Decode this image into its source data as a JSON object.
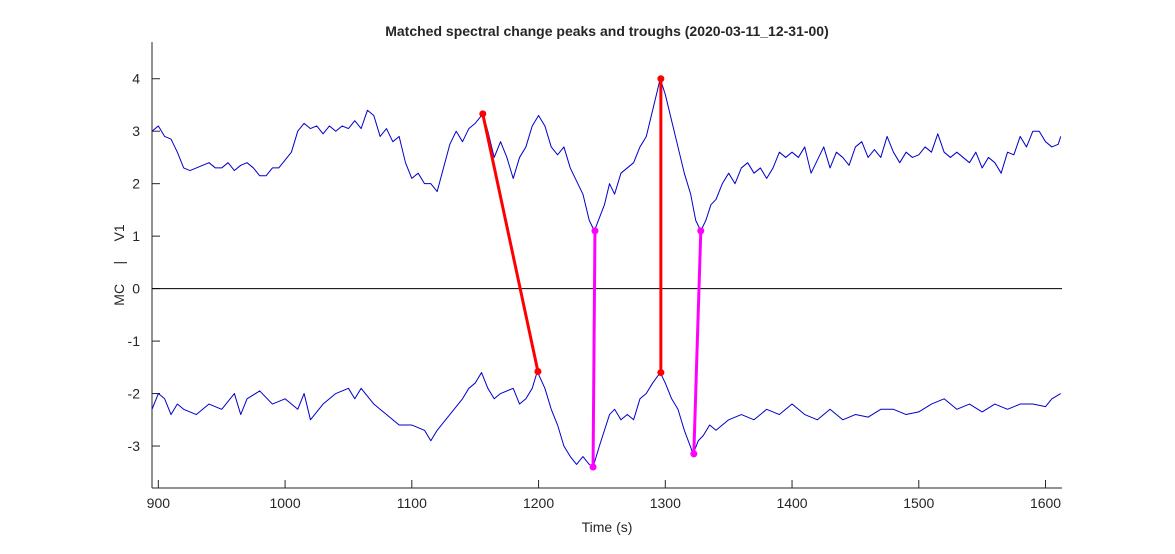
{
  "chart_data": {
    "type": "line",
    "title": "Matched spectral change peaks and troughs (2020-03-11_12-31-00)",
    "xlabel": "Time (s)",
    "ylabel": "MC     |     V1",
    "xlim": [
      895,
      1613
    ],
    "ylim": [
      -3.8,
      4.7
    ],
    "xticks": [
      900,
      1000,
      1100,
      1200,
      1300,
      1400,
      1500,
      1600
    ],
    "yticks": [
      -3,
      -2,
      -1,
      0,
      1,
      2,
      3,
      4
    ],
    "reference_line": 0,
    "series": [
      {
        "color": "#0000cc",
        "x": [
          895,
          900,
          905,
          910,
          915,
          920,
          925,
          930,
          940,
          945,
          950,
          955,
          960,
          965,
          970,
          975,
          980,
          985,
          990,
          995,
          1000,
          1005,
          1010,
          1015,
          1020,
          1025,
          1030,
          1035,
          1040,
          1045,
          1050,
          1055,
          1060,
          1065,
          1070,
          1075,
          1080,
          1085,
          1090,
          1095,
          1100,
          1105,
          1110,
          1115,
          1120,
          1125,
          1130,
          1135,
          1140,
          1145,
          1150,
          1156,
          1160,
          1165,
          1170,
          1175,
          1180,
          1185,
          1190,
          1195,
          1200,
          1205,
          1210,
          1215,
          1220,
          1225,
          1230,
          1235,
          1240,
          1244,
          1248,
          1252,
          1256,
          1260,
          1265,
          1270,
          1275,
          1280,
          1285,
          1290,
          1296,
          1300,
          1305,
          1310,
          1315,
          1320,
          1324,
          1328,
          1332,
          1336,
          1340,
          1345,
          1350,
          1355,
          1360,
          1365,
          1370,
          1375,
          1380,
          1385,
          1390,
          1395,
          1400,
          1405,
          1410,
          1415,
          1420,
          1425,
          1430,
          1435,
          1440,
          1445,
          1450,
          1455,
          1460,
          1465,
          1470,
          1475,
          1480,
          1485,
          1490,
          1495,
          1500,
          1505,
          1510,
          1515,
          1520,
          1525,
          1530,
          1535,
          1540,
          1545,
          1550,
          1555,
          1560,
          1565,
          1570,
          1575,
          1580,
          1585,
          1590,
          1595,
          1600,
          1605,
          1610,
          1612
        ],
        "values": [
          3.0,
          3.1,
          2.9,
          2.85,
          2.6,
          2.3,
          2.25,
          2.3,
          2.4,
          2.3,
          2.3,
          2.4,
          2.25,
          2.35,
          2.4,
          2.3,
          2.15,
          2.15,
          2.3,
          2.3,
          2.45,
          2.6,
          3.0,
          3.15,
          3.05,
          3.1,
          2.95,
          3.1,
          3.0,
          3.1,
          3.05,
          3.2,
          3.05,
          3.4,
          3.3,
          2.9,
          3.05,
          2.8,
          2.9,
          2.4,
          2.1,
          2.2,
          2.0,
          2.0,
          1.85,
          2.3,
          2.75,
          3.0,
          2.8,
          3.05,
          3.15,
          3.33,
          3.0,
          2.5,
          2.8,
          2.5,
          2.1,
          2.5,
          2.7,
          3.1,
          3.3,
          3.1,
          2.7,
          2.55,
          2.7,
          2.3,
          2.05,
          1.8,
          1.3,
          1.1,
          1.35,
          1.6,
          2.0,
          1.8,
          2.2,
          2.3,
          2.4,
          2.7,
          2.9,
          3.4,
          4.0,
          3.7,
          3.2,
          2.7,
          2.2,
          1.8,
          1.3,
          1.1,
          1.3,
          1.6,
          1.7,
          2.0,
          2.2,
          2.0,
          2.3,
          2.4,
          2.2,
          2.3,
          2.1,
          2.3,
          2.6,
          2.5,
          2.6,
          2.5,
          2.7,
          2.2,
          2.45,
          2.7,
          2.3,
          2.6,
          2.5,
          2.35,
          2.7,
          2.8,
          2.5,
          2.65,
          2.5,
          2.9,
          2.6,
          2.4,
          2.6,
          2.5,
          2.55,
          2.7,
          2.6,
          2.95,
          2.6,
          2.5,
          2.6,
          2.5,
          2.4,
          2.6,
          2.3,
          2.5,
          2.4,
          2.2,
          2.6,
          2.55,
          2.9,
          2.7,
          3.0,
          3.0,
          2.8,
          2.7,
          2.75,
          2.9
        ]
      },
      {
        "color": "#0000cc",
        "x": [
          895,
          900,
          905,
          910,
          915,
          920,
          930,
          940,
          950,
          960,
          965,
          970,
          980,
          990,
          1000,
          1010,
          1015,
          1020,
          1030,
          1040,
          1050,
          1055,
          1060,
          1070,
          1080,
          1090,
          1100,
          1110,
          1115,
          1120,
          1130,
          1140,
          1145,
          1150,
          1155,
          1160,
          1165,
          1170,
          1180,
          1185,
          1190,
          1195,
          1199,
          1205,
          1210,
          1215,
          1220,
          1225,
          1230,
          1235,
          1240,
          1243,
          1248,
          1252,
          1256,
          1260,
          1265,
          1270,
          1275,
          1280,
          1285,
          1290,
          1296,
          1300,
          1305,
          1310,
          1315,
          1322,
          1326,
          1330,
          1335,
          1340,
          1350,
          1360,
          1370,
          1380,
          1390,
          1400,
          1410,
          1420,
          1430,
          1440,
          1450,
          1460,
          1470,
          1480,
          1490,
          1500,
          1510,
          1520,
          1530,
          1540,
          1550,
          1560,
          1570,
          1580,
          1590,
          1600,
          1605,
          1612
        ],
        "values": [
          -2.3,
          -2.0,
          -2.1,
          -2.4,
          -2.2,
          -2.3,
          -2.4,
          -2.2,
          -2.3,
          -2.0,
          -2.4,
          -2.1,
          -1.95,
          -2.2,
          -2.1,
          -2.3,
          -2.0,
          -2.5,
          -2.2,
          -2.0,
          -1.9,
          -2.1,
          -1.9,
          -2.2,
          -2.4,
          -2.6,
          -2.6,
          -2.7,
          -2.9,
          -2.7,
          -2.4,
          -2.1,
          -1.9,
          -1.8,
          -1.6,
          -1.9,
          -2.1,
          -2.0,
          -1.9,
          -2.2,
          -2.1,
          -1.9,
          -1.58,
          -1.9,
          -2.3,
          -2.6,
          -3.0,
          -3.2,
          -3.35,
          -3.2,
          -3.35,
          -3.4,
          -3.0,
          -2.7,
          -2.4,
          -2.3,
          -2.5,
          -2.4,
          -2.5,
          -2.1,
          -2.0,
          -1.8,
          -1.6,
          -1.8,
          -2.1,
          -2.3,
          -2.7,
          -3.15,
          -2.9,
          -2.8,
          -2.6,
          -2.7,
          -2.5,
          -2.4,
          -2.5,
          -2.3,
          -2.4,
          -2.2,
          -2.4,
          -2.5,
          -2.3,
          -2.5,
          -2.4,
          -2.45,
          -2.3,
          -2.3,
          -2.4,
          -2.35,
          -2.2,
          -2.1,
          -2.3,
          -2.2,
          -2.35,
          -2.2,
          -2.3,
          -2.2,
          -2.2,
          -2.25,
          -2.1,
          -2.0
        ]
      },
      {
        "color": "#ff0000",
        "markers": true,
        "x": [
          1156,
          1199.5
        ],
        "values": [
          3.33,
          -1.58
        ]
      },
      {
        "color": "#ff00ff",
        "markers": true,
        "x": [
          1244.5,
          1243
        ],
        "values": [
          1.1,
          -3.4
        ]
      },
      {
        "color": "#ff0000",
        "markers": true,
        "x": [
          1296.5,
          1296.5
        ],
        "values": [
          4.0,
          -1.6
        ]
      },
      {
        "color": "#ff00ff",
        "markers": true,
        "x": [
          1328,
          1322.5
        ],
        "values": [
          1.1,
          -3.15
        ]
      }
    ]
  }
}
